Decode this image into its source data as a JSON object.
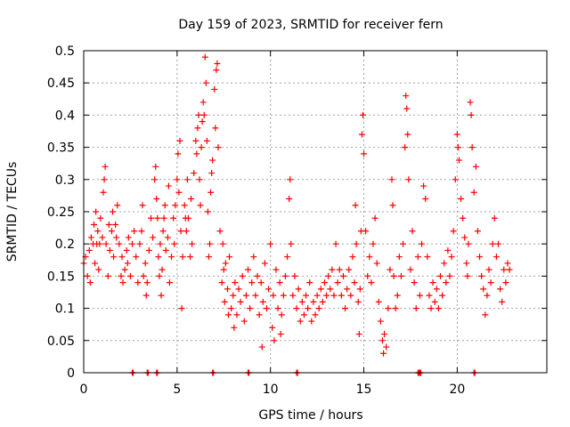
{
  "chart_data": {
    "type": "scatter",
    "title": "Day 159 of 2023, SRMTID for receiver fern",
    "xlabel": "GPS time / hours",
    "ylabel": "SRMTID / TECUs",
    "xlim": [
      0,
      24.8
    ],
    "ylim": [
      0,
      0.5
    ],
    "xticks": [
      0,
      5,
      10,
      15,
      20
    ],
    "yticks": [
      0,
      0.05,
      0.1,
      0.15,
      0.2,
      0.25,
      0.3,
      0.35,
      0.4,
      0.45,
      0.5
    ],
    "xtick_labels": [
      "0",
      "5",
      "10",
      "15",
      "20"
    ],
    "ytick_labels": [
      "0",
      "0.05",
      "0.1",
      "0.15",
      "0.2",
      "0.25",
      "0.3",
      "0.35",
      "0.4",
      "0.45",
      "0.5"
    ],
    "grid": true,
    "marker": "+",
    "color": "#ff0000",
    "series": [
      {
        "name": "SRMTID",
        "points": [
          [
            0.0,
            0.17
          ],
          [
            0.1,
            0.18
          ],
          [
            0.2,
            0.15
          ],
          [
            0.3,
            0.19
          ],
          [
            0.35,
            0.14
          ],
          [
            0.4,
            0.21
          ],
          [
            0.5,
            0.2
          ],
          [
            0.55,
            0.23
          ],
          [
            0.6,
            0.17
          ],
          [
            0.65,
            0.25
          ],
          [
            0.7,
            0.2
          ],
          [
            0.75,
            0.22
          ],
          [
            0.8,
            0.16
          ],
          [
            0.85,
            0.2
          ],
          [
            0.9,
            0.24
          ],
          [
            1.0,
            0.21
          ],
          [
            1.05,
            0.28
          ],
          [
            1.1,
            0.3
          ],
          [
            1.15,
            0.32
          ],
          [
            1.2,
            0.2
          ],
          [
            1.3,
            0.15
          ],
          [
            1.35,
            0.23
          ],
          [
            1.4,
            0.19
          ],
          [
            1.5,
            0.22
          ],
          [
            1.55,
            0.25
          ],
          [
            1.6,
            0.18
          ],
          [
            1.7,
            0.23
          ],
          [
            1.75,
            0.21
          ],
          [
            1.8,
            0.26
          ],
          [
            1.9,
            0.2
          ],
          [
            2.0,
            0.15
          ],
          [
            2.05,
            0.18
          ],
          [
            2.1,
            0.14
          ],
          [
            2.2,
            0.16
          ],
          [
            2.3,
            0.19
          ],
          [
            2.35,
            0.17
          ],
          [
            2.4,
            0.21
          ],
          [
            2.5,
            0.15
          ],
          [
            2.6,
            0.2
          ],
          [
            2.7,
            0.22
          ],
          [
            2.8,
            0.18
          ],
          [
            2.9,
            0.14
          ],
          [
            3.0,
            0.2
          ],
          [
            3.1,
            0.22
          ],
          [
            3.15,
            0.26
          ],
          [
            3.2,
            0.15
          ],
          [
            3.3,
            0.17
          ],
          [
            3.35,
            0.12
          ],
          [
            3.4,
            0.14
          ],
          [
            3.5,
            0.19
          ],
          [
            3.6,
            0.24
          ],
          [
            3.7,
            0.21
          ],
          [
            3.8,
            0.3
          ],
          [
            3.85,
            0.32
          ],
          [
            3.9,
            0.27
          ],
          [
            3.95,
            0.24
          ],
          [
            4.0,
            0.18
          ],
          [
            4.05,
            0.15
          ],
          [
            4.1,
            0.2
          ],
          [
            4.15,
            0.12
          ],
          [
            4.2,
            0.16
          ],
          [
            4.25,
            0.22
          ],
          [
            4.3,
            0.24
          ],
          [
            4.35,
            0.26
          ],
          [
            4.4,
            0.19
          ],
          [
            4.5,
            0.21
          ],
          [
            4.55,
            0.29
          ],
          [
            4.6,
            0.14
          ],
          [
            4.7,
            0.18
          ],
          [
            4.8,
            0.24
          ],
          [
            4.85,
            0.2
          ],
          [
            4.9,
            0.26
          ],
          [
            5.0,
            0.3
          ],
          [
            5.05,
            0.34
          ],
          [
            5.1,
            0.28
          ],
          [
            5.15,
            0.36
          ],
          [
            5.2,
            0.22
          ],
          [
            5.25,
            0.1
          ],
          [
            5.3,
            0.18
          ],
          [
            5.4,
            0.26
          ],
          [
            5.45,
            0.24
          ],
          [
            5.5,
            0.22
          ],
          [
            5.55,
            0.3
          ],
          [
            5.6,
            0.24
          ],
          [
            5.7,
            0.18
          ],
          [
            5.75,
            0.27
          ],
          [
            5.8,
            0.2
          ],
          [
            5.9,
            0.31
          ],
          [
            6.0,
            0.36
          ],
          [
            6.05,
            0.34
          ],
          [
            6.1,
            0.38
          ],
          [
            6.15,
            0.4
          ],
          [
            6.2,
            0.3
          ],
          [
            6.25,
            0.26
          ],
          [
            6.3,
            0.35
          ],
          [
            6.35,
            0.39
          ],
          [
            6.4,
            0.42
          ],
          [
            6.45,
            0.4
          ],
          [
            6.5,
            0.49
          ],
          [
            6.55,
            0.45
          ],
          [
            6.6,
            0.36
          ],
          [
            6.65,
            0.25
          ],
          [
            6.7,
            0.18
          ],
          [
            6.75,
            0.2
          ],
          [
            6.8,
            0.28
          ],
          [
            6.85,
            0.31
          ],
          [
            6.9,
            0.33
          ],
          [
            7.0,
            0.44
          ],
          [
            7.05,
            0.38
          ],
          [
            7.1,
            0.47
          ],
          [
            7.15,
            0.48
          ],
          [
            7.2,
            0.35
          ],
          [
            7.3,
            0.22
          ],
          [
            7.4,
            0.14
          ],
          [
            7.45,
            0.2
          ],
          [
            7.5,
            0.16
          ],
          [
            7.55,
            0.11
          ],
          [
            7.6,
            0.17
          ],
          [
            7.7,
            0.13
          ],
          [
            7.75,
            0.09
          ],
          [
            7.8,
            0.18
          ],
          [
            7.9,
            0.1
          ],
          [
            8.0,
            0.12
          ],
          [
            8.05,
            0.07
          ],
          [
            8.1,
            0.14
          ],
          [
            8.2,
            0.09
          ],
          [
            8.3,
            0.13
          ],
          [
            8.4,
            0.11
          ],
          [
            8.5,
            0.15
          ],
          [
            8.6,
            0.08
          ],
          [
            8.7,
            0.12
          ],
          [
            8.8,
            0.16
          ],
          [
            8.9,
            0.1
          ],
          [
            9.0,
            0.14
          ],
          [
            9.1,
            0.18
          ],
          [
            9.2,
            0.12
          ],
          [
            9.3,
            0.15
          ],
          [
            9.4,
            0.09
          ],
          [
            9.5,
            0.14
          ],
          [
            9.55,
            0.04
          ],
          [
            9.6,
            0.11
          ],
          [
            9.7,
            0.17
          ],
          [
            9.8,
            0.1
          ],
          [
            9.9,
            0.13
          ],
          [
            10.0,
            0.2
          ],
          [
            10.1,
            0.07
          ],
          [
            10.15,
            0.12
          ],
          [
            10.2,
            0.05
          ],
          [
            10.3,
            0.16
          ],
          [
            10.4,
            0.1
          ],
          [
            10.5,
            0.14
          ],
          [
            10.55,
            0.06
          ],
          [
            10.6,
            0.09
          ],
          [
            10.7,
            0.12
          ],
          [
            10.8,
            0.15
          ],
          [
            10.9,
            0.18
          ],
          [
            11.0,
            0.27
          ],
          [
            11.05,
            0.3
          ],
          [
            11.1,
            0.2
          ],
          [
            11.2,
            0.12
          ],
          [
            11.3,
            0.15
          ],
          [
            11.4,
            0.1
          ],
          [
            11.5,
            0.13
          ],
          [
            11.6,
            0.08
          ],
          [
            11.7,
            0.11
          ],
          [
            11.8,
            0.09
          ],
          [
            11.9,
            0.12
          ],
          [
            12.0,
            0.1
          ],
          [
            12.1,
            0.14
          ],
          [
            12.2,
            0.08
          ],
          [
            12.3,
            0.11
          ],
          [
            12.4,
            0.09
          ],
          [
            12.5,
            0.12
          ],
          [
            12.6,
            0.1
          ],
          [
            12.7,
            0.13
          ],
          [
            12.8,
            0.11
          ],
          [
            12.9,
            0.14
          ],
          [
            13.0,
            0.12
          ],
          [
            13.1,
            0.15
          ],
          [
            13.2,
            0.13
          ],
          [
            13.3,
            0.16
          ],
          [
            13.4,
            0.12
          ],
          [
            13.5,
            0.2
          ],
          [
            13.6,
            0.14
          ],
          [
            13.7,
            0.16
          ],
          [
            13.8,
            0.12
          ],
          [
            13.9,
            0.15
          ],
          [
            14.0,
            0.1
          ],
          [
            14.1,
            0.13
          ],
          [
            14.2,
            0.16
          ],
          [
            14.3,
            0.12
          ],
          [
            14.4,
            0.18
          ],
          [
            14.5,
            0.14
          ],
          [
            14.55,
            0.26
          ],
          [
            14.6,
            0.2
          ],
          [
            14.7,
            0.11
          ],
          [
            14.75,
            0.06
          ],
          [
            14.8,
            0.13
          ],
          [
            14.85,
            0.22
          ],
          [
            14.9,
            0.37
          ],
          [
            14.95,
            0.4
          ],
          [
            15.0,
            0.34
          ],
          [
            15.1,
            0.22
          ],
          [
            15.2,
            0.15
          ],
          [
            15.3,
            0.18
          ],
          [
            15.4,
            0.14
          ],
          [
            15.5,
            0.2
          ],
          [
            15.6,
            0.24
          ],
          [
            15.7,
            0.17
          ],
          [
            15.8,
            0.11
          ],
          [
            15.9,
            0.08
          ],
          [
            16.0,
            0.05
          ],
          [
            16.05,
            0.03
          ],
          [
            16.1,
            0.06
          ],
          [
            16.2,
            0.04
          ],
          [
            16.3,
            0.1
          ],
          [
            16.4,
            0.16
          ],
          [
            16.5,
            0.3
          ],
          [
            16.55,
            0.26
          ],
          [
            16.6,
            0.15
          ],
          [
            16.7,
            0.1
          ],
          [
            16.8,
            0.12
          ],
          [
            16.9,
            0.18
          ],
          [
            17.0,
            0.15
          ],
          [
            17.1,
            0.2
          ],
          [
            17.2,
            0.35
          ],
          [
            17.25,
            0.43
          ],
          [
            17.3,
            0.41
          ],
          [
            17.35,
            0.37
          ],
          [
            17.4,
            0.3
          ],
          [
            17.5,
            0.16
          ],
          [
            17.6,
            0.22
          ],
          [
            17.7,
            0.14
          ],
          [
            17.8,
            0.1
          ],
          [
            17.9,
            0.18
          ],
          [
            18.0,
            0.12
          ],
          [
            18.1,
            0.2
          ],
          [
            18.2,
            0.29
          ],
          [
            18.3,
            0.27
          ],
          [
            18.4,
            0.18
          ],
          [
            18.5,
            0.12
          ],
          [
            18.6,
            0.1
          ],
          [
            18.7,
            0.14
          ],
          [
            18.8,
            0.11
          ],
          [
            18.9,
            0.13
          ],
          [
            19.0,
            0.1
          ],
          [
            19.1,
            0.15
          ],
          [
            19.2,
            0.12
          ],
          [
            19.3,
            0.17
          ],
          [
            19.4,
            0.14
          ],
          [
            19.5,
            0.19
          ],
          [
            19.6,
            0.15
          ],
          [
            19.7,
            0.18
          ],
          [
            19.8,
            0.22
          ],
          [
            19.9,
            0.3
          ],
          [
            20.0,
            0.37
          ],
          [
            20.05,
            0.35
          ],
          [
            20.1,
            0.33
          ],
          [
            20.2,
            0.27
          ],
          [
            20.3,
            0.24
          ],
          [
            20.4,
            0.21
          ],
          [
            20.5,
            0.17
          ],
          [
            20.55,
            0.15
          ],
          [
            20.6,
            0.2
          ],
          [
            20.7,
            0.42
          ],
          [
            20.75,
            0.4
          ],
          [
            20.8,
            0.35
          ],
          [
            20.9,
            0.28
          ],
          [
            21.0,
            0.32
          ],
          [
            21.1,
            0.22
          ],
          [
            21.2,
            0.18
          ],
          [
            21.3,
            0.15
          ],
          [
            21.4,
            0.13
          ],
          [
            21.5,
            0.09
          ],
          [
            21.6,
            0.12
          ],
          [
            21.7,
            0.16
          ],
          [
            21.8,
            0.14
          ],
          [
            21.9,
            0.2
          ],
          [
            22.0,
            0.24
          ],
          [
            22.1,
            0.18
          ],
          [
            22.2,
            0.2
          ],
          [
            22.3,
            0.13
          ],
          [
            22.4,
            0.11
          ],
          [
            22.5,
            0.16
          ],
          [
            22.6,
            0.14
          ],
          [
            22.7,
            0.17
          ],
          [
            22.8,
            0.16
          ]
        ],
        "zero_points": [
          2.6,
          3.4,
          3.9,
          6.9,
          8.8,
          11.4,
          17.9,
          18.0,
          20.9
        ]
      }
    ]
  }
}
